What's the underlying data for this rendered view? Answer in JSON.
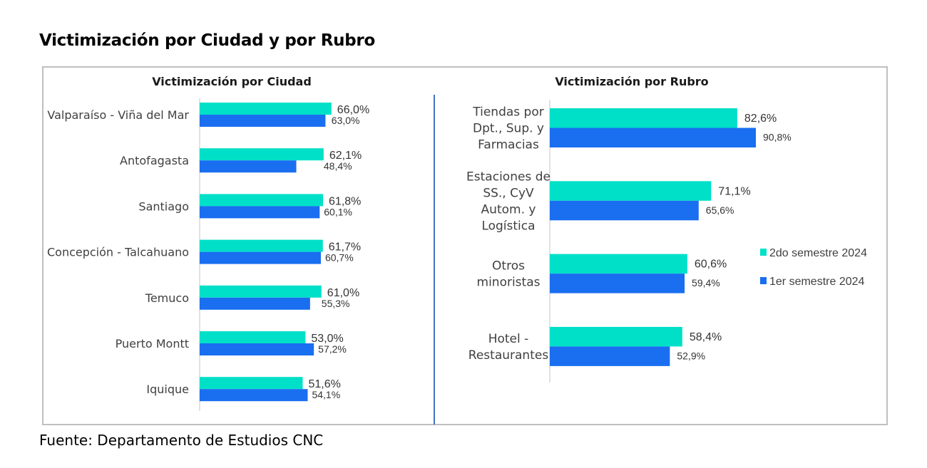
{
  "title": "Victimización por Ciudad y por Rubro",
  "source": "Fuente: Departamento de Estudios CNC",
  "colors": {
    "series_2do": "#00e0c8",
    "series_1er": "#1a6ef0",
    "divider": "#4472c4",
    "frame": "#bfbfbf"
  },
  "chart_data": [
    {
      "type": "bar",
      "orientation": "horizontal",
      "title": "Victimización por Ciudad",
      "categories": [
        "Valparaíso - Viña del Mar",
        "Antofagasta",
        "Santiago",
        "Concepción - Talcahuano",
        "Temuco",
        "Puerto Montt",
        "Iquique"
      ],
      "series": [
        {
          "name": "2do semestre 2024",
          "values": [
            66.0,
            62.1,
            61.8,
            61.7,
            61.0,
            53.0,
            51.6
          ],
          "labels": [
            "66,0%",
            "62,1%",
            "61,8%",
            "61,7%",
            "61,0%",
            "53,0%",
            "51,6%"
          ]
        },
        {
          "name": "1er semestre 2024",
          "values": [
            63.0,
            48.4,
            60.1,
            60.7,
            55.3,
            57.2,
            54.1
          ],
          "labels": [
            "63,0%",
            "48,4%",
            "60,1%",
            "60,7%",
            "55,3%",
            "57,2%",
            "54,1%"
          ]
        }
      ],
      "xlim": [
        0,
        100
      ],
      "grid": false,
      "legend": "none"
    },
    {
      "type": "bar",
      "orientation": "horizontal",
      "title": "Victimización por Rubro",
      "categories": [
        [
          "Tiendas por",
          "Dpt., Sup. y",
          "Farmacias"
        ],
        [
          "Estaciones de",
          "SS., CyV",
          "Autom. y",
          "Logística"
        ],
        [
          "Otros",
          "minoristas"
        ],
        [
          "Hotel -",
          "Restaurantes"
        ]
      ],
      "series": [
        {
          "name": "2do semestre 2024",
          "values": [
            82.6,
            71.1,
            60.6,
            58.4
          ],
          "labels": [
            "82,6%",
            "71,1%",
            "60,6%",
            "58,4%"
          ]
        },
        {
          "name": "1er semestre 2024",
          "values": [
            90.8,
            65.6,
            59.4,
            52.9
          ],
          "labels": [
            "90,8%",
            "65,6%",
            "59,4%",
            "52,9%"
          ]
        }
      ],
      "xlim": [
        0,
        100
      ],
      "grid": false,
      "legend": "right"
    }
  ]
}
